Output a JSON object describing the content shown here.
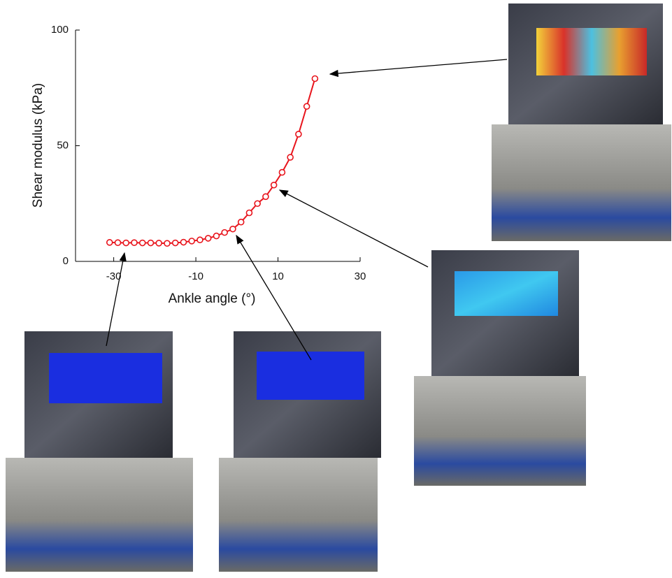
{
  "chart_data": {
    "type": "line",
    "x": [
      -31,
      -29,
      -27,
      -25,
      -23,
      -21,
      -19,
      -17,
      -15,
      -13,
      -11,
      -9,
      -7,
      -5,
      -3,
      -1,
      1,
      3,
      5,
      7,
      9,
      11,
      13,
      15,
      17,
      19
    ],
    "series": [
      {
        "color": "#e8141c",
        "values": [
          8.2,
          8.1,
          8.0,
          8.1,
          8.0,
          8.0,
          7.9,
          7.8,
          8.0,
          8.3,
          8.8,
          9.3,
          10.0,
          11.0,
          12.5,
          14.0,
          17.0,
          21.0,
          25.0,
          28.0,
          33.0,
          38.5,
          45.0,
          55.0,
          67.0,
          79.0
        ]
      }
    ],
    "xlabel": "Ankle angle (°)",
    "ylabel": "Shear modulus (kPa)",
    "xlim": [
      -39.3,
      30
    ],
    "ylim": [
      0,
      100
    ],
    "xticks": [
      -30,
      -10,
      10,
      30
    ],
    "yticks": [
      0,
      50,
      100
    ]
  }
}
